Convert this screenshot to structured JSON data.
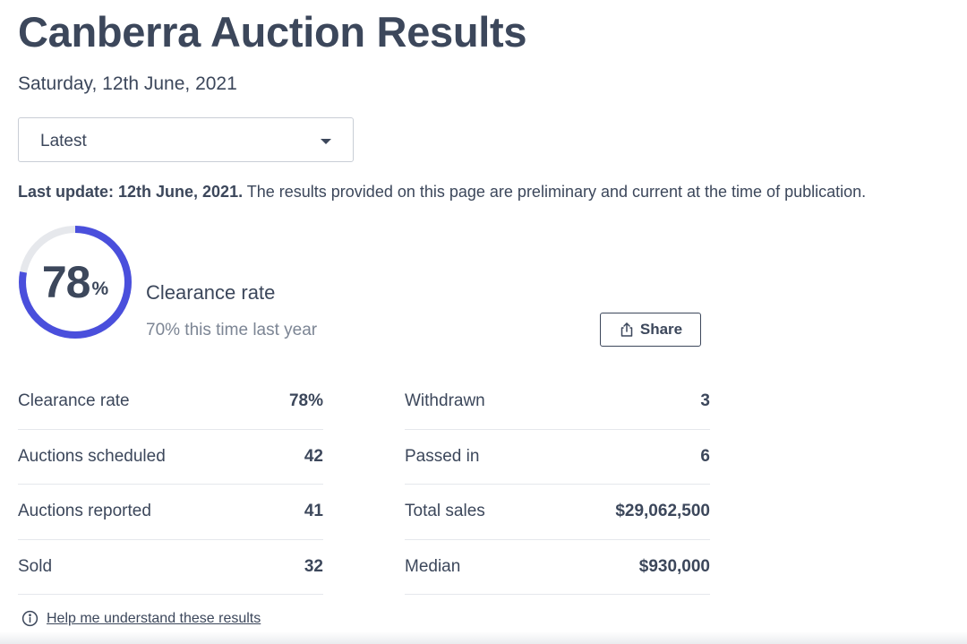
{
  "header": {
    "title": "Canberra Auction Results",
    "date": "Saturday, 12th June, 2021"
  },
  "filter": {
    "selected": "Latest"
  },
  "notice": {
    "bold": "Last update: 12th June, 2021.",
    "text": " The results provided on this page are preliminary and current at the time of publication."
  },
  "clearance": {
    "value": "78",
    "percent_sign": "%",
    "fraction": 0.78,
    "label": "Clearance rate",
    "last_year": "70% this time last year",
    "ring_color": "#4a4fdc",
    "track_color": "#e6e8ec"
  },
  "share": {
    "label": "Share",
    "icon": "share-icon"
  },
  "stats": {
    "left": [
      {
        "label": "Clearance rate",
        "value": "78%"
      },
      {
        "label": "Auctions scheduled",
        "value": "42"
      },
      {
        "label": "Auctions reported",
        "value": "41"
      },
      {
        "label": "Sold",
        "value": "32"
      }
    ],
    "right": [
      {
        "label": "Withdrawn",
        "value": "3"
      },
      {
        "label": "Passed in",
        "value": "6"
      },
      {
        "label": "Total sales",
        "value": "$29,062,500"
      },
      {
        "label": "Median",
        "value": "$930,000"
      }
    ]
  },
  "help": {
    "icon": "info-icon",
    "label": "Help me understand these results"
  }
}
